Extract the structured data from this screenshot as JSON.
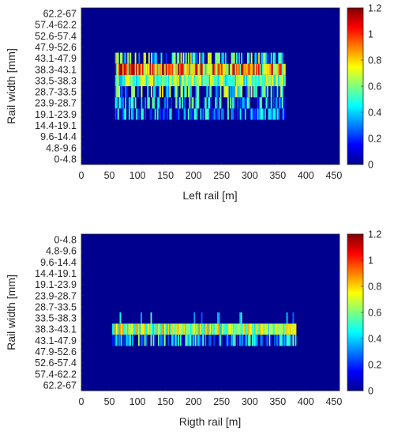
{
  "chart_data": [
    {
      "type": "heatmap",
      "xlabel": "Left rail [m]",
      "ylabel": "Rail width [mm]",
      "x_ticks": [
        0,
        50,
        100,
        150,
        200,
        250,
        300,
        350,
        400,
        450
      ],
      "xlim": [
        0,
        460
      ],
      "y_categories": [
        "62.2-67",
        "57.4-62.2",
        "52.6-57.4",
        "47.9-52.6",
        "43.1-47.9",
        "38.3-43.1",
        "33.5-38.3",
        "28.7-33.5",
        "23.9-28.7",
        "19.1-23.9",
        "14.4-19.1",
        "9.6-14.4",
        "4.8-9.6",
        "0-4.8"
      ],
      "data_x_range": [
        60,
        363
      ],
      "row_typical_values": {
        "43.1-47.9": 0.5,
        "38.3-43.1": 0.95,
        "33.5-38.3": 0.65,
        "28.7-33.5": 0.5,
        "23.9-28.7": 0.4,
        "19.1-23.9": 0.35
      },
      "colorbar": {
        "min": 0,
        "max": 1.2,
        "ticks": [
          0,
          0.2,
          0.4,
          0.6,
          0.8,
          1.0,
          1.2
        ],
        "tick_labels": [
          "0",
          "0.2",
          "0.4",
          "0.6",
          "0.8",
          "1",
          "1.2"
        ],
        "colormap": "jet"
      },
      "background_color": "#00008f",
      "grid": false
    },
    {
      "type": "heatmap",
      "xlabel": "Rigth rail [m]",
      "ylabel": "Rail width [mm]",
      "x_ticks": [
        0,
        50,
        100,
        150,
        200,
        250,
        300,
        350,
        400,
        450
      ],
      "xlim": [
        0,
        460
      ],
      "y_categories": [
        "0-4.8",
        "4.8-9.6",
        "9.6-14.4",
        "14.4-19.1",
        "19.1-23.9",
        "23.9-28.7",
        "28.7-33.5",
        "33.5-38.3",
        "38.3-43.1",
        "43.1-47.9",
        "47.9-52.6",
        "52.6-57.4",
        "57.4-62.2",
        "62.2-67"
      ],
      "data_x_range": [
        55,
        382
      ],
      "row_typical_values": {
        "33.5-38.3": 0.1,
        "38.3-43.1": 0.7,
        "43.1-47.9": 0.4
      },
      "colorbar": {
        "min": 0,
        "max": 1.2,
        "ticks": [
          0,
          0.2,
          0.4,
          0.6,
          0.8,
          1.0,
          1.2
        ],
        "tick_labels": [
          "0",
          "0.2",
          "0.4",
          "0.6",
          "0.8",
          "1",
          "1.2"
        ],
        "colormap": "jet"
      },
      "background_color": "#00008f",
      "grid": false
    }
  ]
}
